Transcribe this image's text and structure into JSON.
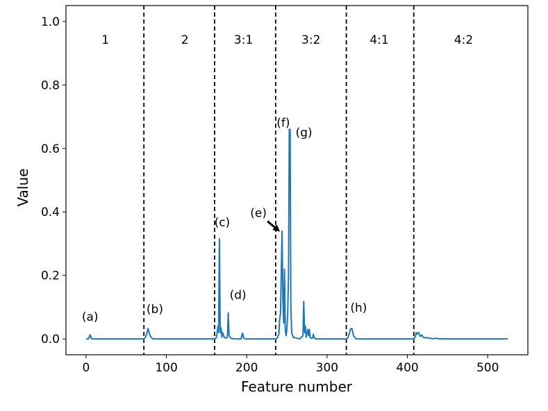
{
  "chart_data": {
    "type": "line",
    "title": "",
    "xlabel": "Feature number",
    "ylabel": "Value",
    "xlim": [
      -25,
      550
    ],
    "ylim": [
      -0.05,
      1.05
    ],
    "xticks": [
      0,
      100,
      200,
      300,
      400,
      500
    ],
    "xtick_labels": [
      "0",
      "100",
      "200",
      "300",
      "400",
      "500"
    ],
    "yticks": [
      0.0,
      0.2,
      0.4,
      0.6,
      0.8,
      1.0
    ],
    "ytick_labels": [
      "0.0",
      "0.2",
      "0.4",
      "0.6",
      "0.8",
      "1.0"
    ],
    "grid": false,
    "line_color": "#1f77b4",
    "dividers": [
      72,
      160,
      236,
      324,
      408
    ],
    "regions": [
      {
        "label": "1",
        "x": 24
      },
      {
        "label": "2",
        "x": 123
      },
      {
        "label": "3:1",
        "x": 196
      },
      {
        "label": "3:2",
        "x": 280
      },
      {
        "label": "4:1",
        "x": 365
      },
      {
        "label": "4:2",
        "x": 470
      }
    ],
    "annotations": [
      {
        "label": "(a)",
        "x": 5,
        "y": 0.013
      },
      {
        "label": "(b)",
        "x": 77,
        "y": 0.033
      },
      {
        "label": "(c)",
        "x": 166,
        "y": 0.315
      },
      {
        "label": "(d)",
        "x": 177,
        "y": 0.082
      },
      {
        "label": "(e)",
        "x": 244,
        "y": 0.34,
        "arrow": true
      },
      {
        "label": "(f)",
        "x": 249,
        "y": 0.66
      },
      {
        "label": "(g)",
        "x": 254,
        "y": 0.66
      },
      {
        "label": "(h)",
        "x": 329,
        "y": 0.033
      }
    ],
    "series": [
      {
        "x": [
          0,
          3,
          5,
          7,
          10,
          20,
          40,
          60,
          72,
          74,
          76,
          77,
          78,
          80,
          83,
          90,
          110,
          130,
          150,
          160,
          162,
          163,
          164,
          165,
          166,
          167,
          168,
          169,
          170,
          172,
          175,
          176,
          177,
          178,
          180,
          185,
          193,
          194,
          195,
          196,
          198,
          205,
          220,
          236,
          238,
          240,
          241,
          242,
          243,
          244,
          245,
          246,
          247,
          248,
          249,
          250,
          251,
          252,
          253,
          254,
          255,
          256,
          258,
          262,
          266,
          270,
          271,
          272,
          273,
          274,
          276,
          277,
          278,
          279,
          280,
          282,
          283,
          284,
          286,
          290,
          300,
          310,
          324,
          326,
          328,
          329,
          331,
          333,
          336,
          345,
          370,
          395,
          408,
          410,
          411,
          412,
          414,
          416,
          418,
          420,
          423,
          425,
          428,
          432,
          436,
          440,
          445,
          448,
          460,
          500,
          525
        ],
        "values": [
          0,
          0,
          0.013,
          0,
          0,
          0,
          0,
          0,
          0,
          0.005,
          0.02,
          0.033,
          0.025,
          0.008,
          0,
          0,
          0,
          0,
          0,
          0,
          0.003,
          0.015,
          0.04,
          0.02,
          0.315,
          0.02,
          0.035,
          0.005,
          0.02,
          0.005,
          0.002,
          0.01,
          0.082,
          0.01,
          0.002,
          0,
          0,
          0.012,
          0.018,
          0.003,
          0,
          0,
          0,
          0,
          0.003,
          0.015,
          0.06,
          0.08,
          0.2,
          0.34,
          0.12,
          0.05,
          0.22,
          0.03,
          0.01,
          0.03,
          0.08,
          0.2,
          0.66,
          0.66,
          0.1,
          0.02,
          0.005,
          0.003,
          0,
          0.01,
          0.118,
          0.02,
          0.04,
          0.005,
          0.03,
          0.01,
          0.03,
          0.005,
          0.002,
          0.003,
          0.015,
          0.003,
          0,
          0,
          0,
          0,
          0,
          0.003,
          0.02,
          0.03,
          0.033,
          0.01,
          0,
          0,
          0,
          0,
          0,
          0.008,
          0.02,
          0.015,
          0.02,
          0.008,
          0.012,
          0.005,
          0.003,
          0.004,
          0.002,
          0.001,
          0.002,
          0,
          0.001,
          0,
          0,
          0,
          0
        ]
      }
    ]
  }
}
